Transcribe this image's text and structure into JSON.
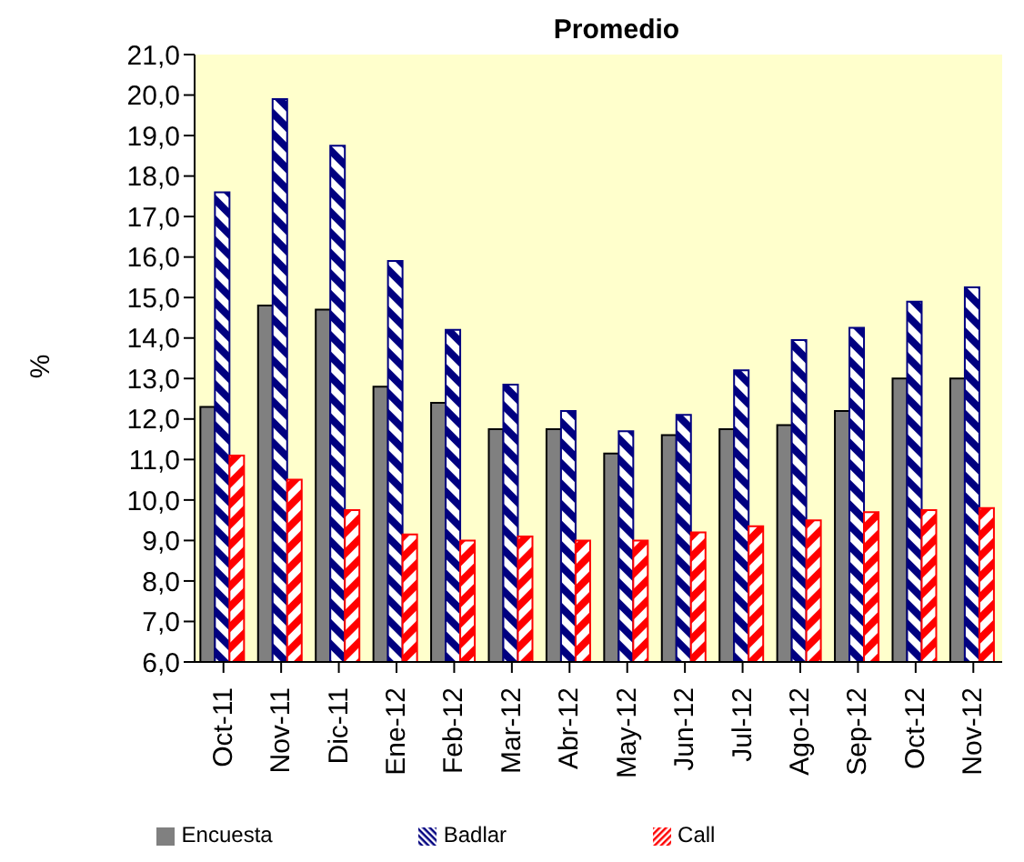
{
  "chart_data": {
    "type": "bar",
    "title": "Promedio",
    "ylabel": "%",
    "categories": [
      "Oct-11",
      "Nov-11",
      "Dic-11",
      "Ene-12",
      "Feb-12",
      "Mar-12",
      "Abr-12",
      "May-12",
      "Jun-12",
      "Jul-12",
      "Ago-12",
      "Sep-12",
      "Oct-12",
      "Nov-12"
    ],
    "series": [
      {
        "name": "Encuesta",
        "color": "#808080",
        "values": [
          12.3,
          14.8,
          14.7,
          12.8,
          12.4,
          11.75,
          11.75,
          11.15,
          11.6,
          11.75,
          11.85,
          12.2,
          13.0,
          13.0
        ]
      },
      {
        "name": "Badlar",
        "color": "#000080",
        "values": [
          17.6,
          19.9,
          18.75,
          15.9,
          14.2,
          12.85,
          12.2,
          11.7,
          12.1,
          13.2,
          13.95,
          14.25,
          14.9,
          15.25
        ]
      },
      {
        "name": "Call",
        "color": "#ff0000",
        "values": [
          11.1,
          10.5,
          9.75,
          9.15,
          9.0,
          9.1,
          9.0,
          9.0,
          9.2,
          9.35,
          9.5,
          9.7,
          9.75,
          9.8
        ]
      }
    ],
    "ylim": [
      6,
      21
    ],
    "yticks": [
      {
        "value": 6,
        "label": "6,0"
      },
      {
        "value": 7,
        "label": "7,0"
      },
      {
        "value": 8,
        "label": "8,0"
      },
      {
        "value": 9,
        "label": "9,0"
      },
      {
        "value": 10,
        "label": "10,0"
      },
      {
        "value": 11,
        "label": "11,0"
      },
      {
        "value": 12,
        "label": "12,0"
      },
      {
        "value": 13,
        "label": "13,0"
      },
      {
        "value": 14,
        "label": "14,0"
      },
      {
        "value": 15,
        "label": "15,0"
      },
      {
        "value": 16,
        "label": "16,0"
      },
      {
        "value": 17,
        "label": "17,0"
      },
      {
        "value": 18,
        "label": "18,0"
      },
      {
        "value": 19,
        "label": "19,0"
      },
      {
        "value": 20,
        "label": "20,0"
      },
      {
        "value": 21,
        "label": "21,0"
      }
    ],
    "grid": false,
    "legend": "bottom"
  }
}
